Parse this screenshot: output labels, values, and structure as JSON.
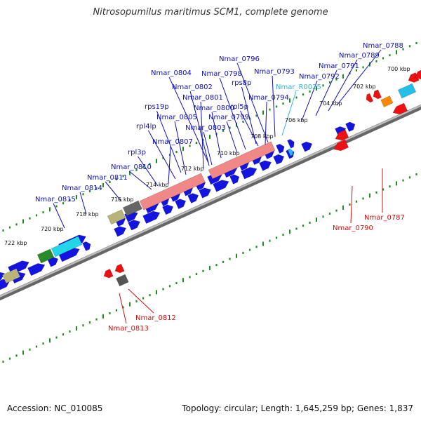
{
  "title": "Nitrosopumilus maritimus SCM1, complete genome",
  "footer": {
    "accession": "Accession: NC_010085",
    "stats": "Topology: circular; Length: 1,645,259 bp; Genes: 1,837"
  },
  "colors": {
    "backbone": "#8a8a8a",
    "forward_cds": "#1414e0",
    "reverse_cds": "#ee1111",
    "rrna": "#f08888",
    "ticks": "#1e8c1e",
    "label_forward": "#1010b8",
    "label_reverse": "#d01010",
    "label_ncrna": "#2eb8d8"
  },
  "kbp_ticks": [
    "700 kbp",
    "702 kbp",
    "704 kbp",
    "706 kbp",
    "708 kbp",
    "710 kbp",
    "712 kbp",
    "714 kbp",
    "716 kbp",
    "718 kbp",
    "720 kbp",
    "722 kbp"
  ],
  "labels_top": [
    "Nmar_0788",
    "Nmar_0789",
    "Nmar_0791",
    "Nmar_0796",
    "Nmar_0792",
    "Nmar_0793",
    "Nmar_0804",
    "Nmar_0798",
    "Nmar_R0025",
    "rps8p",
    "Nmar_0802",
    "Nmar_0794",
    "Nmar_0801",
    "rpl5p",
    "rps19p",
    "Nmar_0800",
    "Nmar_0805",
    "Nmar_0799",
    "rpl4lp",
    "Nmar_0803",
    "Nmar_0807",
    "rpl3p",
    "Nmar_0810",
    "Nmar_0811",
    "Nmar_0814",
    "Nmar_0815"
  ],
  "labels_bottom": [
    "Nmar_0787",
    "Nmar_0790",
    "Nmar_0812",
    "Nmar_0813"
  ]
}
